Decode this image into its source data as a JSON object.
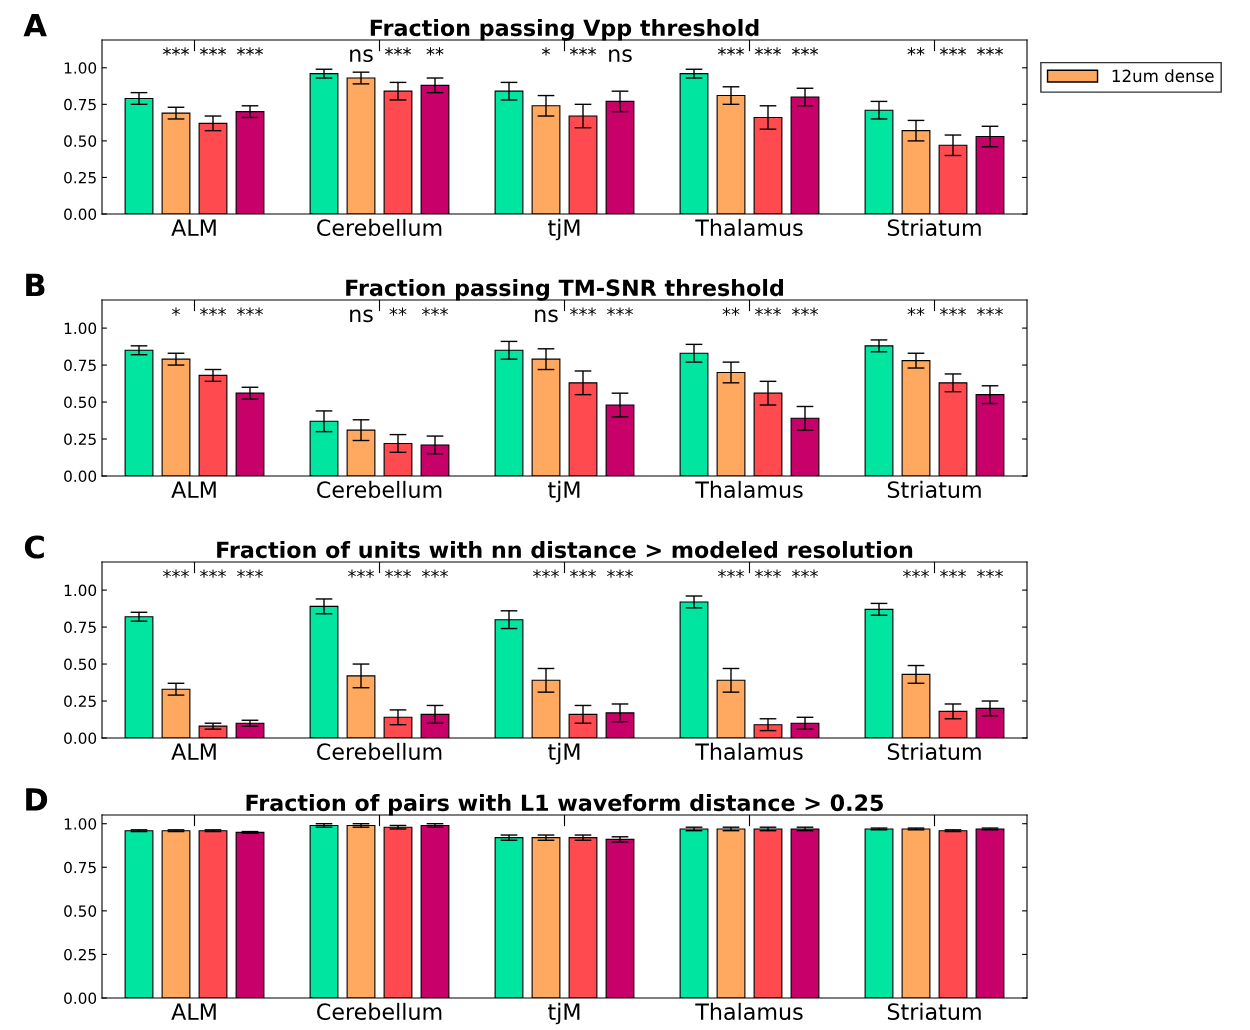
{
  "chart_data": [
    {
      "type": "bar",
      "title": "Fraction passing Vpp threshold",
      "categories": [
        "ALM",
        "Cerebellum",
        "tjM",
        "Thalamus",
        "Striatum"
      ],
      "ylim": [
        0,
        1.19
      ],
      "yticks": [
        {
          "value": 0,
          "label": "0.00"
        },
        {
          "value": 0.25,
          "label": "0.25"
        },
        {
          "value": 0.5,
          "label": "0.50"
        },
        {
          "value": 0.75,
          "label": "0.75"
        },
        {
          "value": 1,
          "label": "1.00"
        }
      ],
      "legend": "right",
      "grid": false,
      "annotations": [
        "A",
        "***",
        "***",
        "***",
        "ns",
        "***",
        "**",
        "*",
        "***",
        "ns",
        "***",
        "***",
        "***",
        "**",
        "***",
        "***"
      ],
      "series": [
        {
          "color": "#00e5a0",
          "values": [
            0.79,
            0.96,
            0.84,
            0.96,
            0.71
          ],
          "errors": [
            0.04,
            0.03,
            0.06,
            0.03,
            0.06
          ]
        },
        {
          "name": "12um dense",
          "color": "#ffa860",
          "values": [
            0.69,
            0.93,
            0.74,
            0.81,
            0.57
          ],
          "errors": [
            0.04,
            0.04,
            0.07,
            0.06,
            0.07
          ]
        },
        {
          "color": "#ff4b50",
          "values": [
            0.62,
            0.84,
            0.67,
            0.66,
            0.47
          ],
          "errors": [
            0.05,
            0.06,
            0.08,
            0.08,
            0.07
          ]
        },
        {
          "color": "#c8006a",
          "values": [
            0.7,
            0.88,
            0.77,
            0.8,
            0.53
          ],
          "errors": [
            0.04,
            0.05,
            0.07,
            0.06,
            0.07
          ]
        }
      ]
    },
    {
      "type": "bar",
      "title": "Fraction passing TM-SNR threshold",
      "categories": [
        "ALM",
        "Cerebellum",
        "tjM",
        "Thalamus",
        "Striatum"
      ],
      "ylim": [
        0,
        1.19
      ],
      "yticks": [
        {
          "value": 0,
          "label": "0.00"
        },
        {
          "value": 0.25,
          "label": "0.25"
        },
        {
          "value": 0.5,
          "label": "0.50"
        },
        {
          "value": 0.75,
          "label": "0.75"
        },
        {
          "value": 1,
          "label": "1.00"
        }
      ],
      "grid": false,
      "annotations": [
        "B",
        "*",
        "***",
        "***",
        "ns",
        "**",
        "***",
        "ns",
        "***",
        "***",
        "**",
        "***",
        "***",
        "**",
        "***",
        "***"
      ],
      "series": [
        {
          "color": "#00e5a0",
          "values": [
            0.85,
            0.37,
            0.85,
            0.83,
            0.88
          ],
          "errors": [
            0.03,
            0.07,
            0.06,
            0.06,
            0.04
          ]
        },
        {
          "color": "#ffa860",
          "values": [
            0.79,
            0.31,
            0.79,
            0.7,
            0.78
          ],
          "errors": [
            0.04,
            0.07,
            0.07,
            0.07,
            0.05
          ]
        },
        {
          "color": "#ff4b50",
          "values": [
            0.68,
            0.22,
            0.63,
            0.56,
            0.63
          ],
          "errors": [
            0.04,
            0.06,
            0.08,
            0.08,
            0.06
          ]
        },
        {
          "color": "#c8006a",
          "values": [
            0.56,
            0.21,
            0.48,
            0.39,
            0.55
          ],
          "errors": [
            0.04,
            0.06,
            0.08,
            0.08,
            0.06
          ]
        }
      ]
    },
    {
      "type": "bar",
      "title": "Fraction of units with nn distance > modeled resolution",
      "categories": [
        "ALM",
        "Cerebellum",
        "tjM",
        "Thalamus",
        "Striatum"
      ],
      "ylim": [
        0,
        1.19
      ],
      "yticks": [
        {
          "value": 0,
          "label": "0.00"
        },
        {
          "value": 0.25,
          "label": "0.25"
        },
        {
          "value": 0.5,
          "label": "0.50"
        },
        {
          "value": 0.75,
          "label": "0.75"
        },
        {
          "value": 1,
          "label": "1.00"
        }
      ],
      "grid": false,
      "annotations": [
        "C",
        "***",
        "***",
        "***",
        "***",
        "***",
        "***",
        "***",
        "***",
        "***",
        "***",
        "***",
        "***",
        "***",
        "***",
        "***"
      ],
      "series": [
        {
          "color": "#00e5a0",
          "values": [
            0.82,
            0.89,
            0.8,
            0.92,
            0.87
          ],
          "errors": [
            0.03,
            0.05,
            0.06,
            0.04,
            0.04
          ]
        },
        {
          "color": "#ffa860",
          "values": [
            0.33,
            0.42,
            0.39,
            0.39,
            0.43
          ],
          "errors": [
            0.04,
            0.08,
            0.08,
            0.08,
            0.06
          ]
        },
        {
          "color": "#ff4b50",
          "values": [
            0.08,
            0.14,
            0.16,
            0.09,
            0.18
          ],
          "errors": [
            0.02,
            0.05,
            0.06,
            0.04,
            0.05
          ]
        },
        {
          "color": "#c8006a",
          "values": [
            0.1,
            0.16,
            0.17,
            0.1,
            0.2
          ],
          "errors": [
            0.02,
            0.06,
            0.06,
            0.04,
            0.05
          ]
        }
      ]
    },
    {
      "type": "bar",
      "title": "Fraction of pairs with L1 waveform distance > 0.25",
      "categories": [
        "ALM",
        "Cerebellum",
        "tjM",
        "Thalamus",
        "Striatum"
      ],
      "ylim": [
        0,
        1.05
      ],
      "yticks": [
        {
          "value": 0,
          "label": "0.00"
        },
        {
          "value": 0.25,
          "label": "0.25"
        },
        {
          "value": 0.5,
          "label": "0.50"
        },
        {
          "value": 0.75,
          "label": "0.75"
        },
        {
          "value": 1,
          "label": "1.00"
        }
      ],
      "grid": false,
      "annotations": [
        "D"
      ],
      "series": [
        {
          "color": "#00e5a0",
          "values": [
            0.96,
            0.99,
            0.92,
            0.97,
            0.97
          ],
          "errors": [
            0.005,
            0.01,
            0.015,
            0.01,
            0.005
          ]
        },
        {
          "color": "#ffa860",
          "values": [
            0.96,
            0.99,
            0.92,
            0.97,
            0.97
          ],
          "errors": [
            0.005,
            0.01,
            0.015,
            0.01,
            0.005
          ]
        },
        {
          "color": "#ff4b50",
          "values": [
            0.96,
            0.98,
            0.92,
            0.97,
            0.96
          ],
          "errors": [
            0.005,
            0.01,
            0.015,
            0.01,
            0.005
          ]
        },
        {
          "color": "#c8006a",
          "values": [
            0.95,
            0.99,
            0.91,
            0.97,
            0.97
          ],
          "errors": [
            0.005,
            0.01,
            0.015,
            0.01,
            0.005
          ]
        }
      ]
    }
  ]
}
